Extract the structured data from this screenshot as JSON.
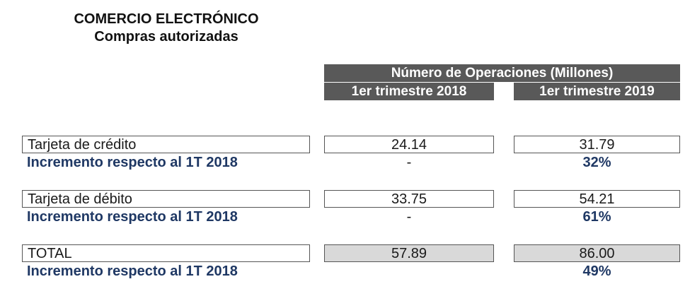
{
  "title": "COMERCIO ELECTRÓNICO",
  "subtitle": "Compras autorizadas",
  "header": {
    "main": "Número de Operaciones (Millones)",
    "col1": "1er trimestre 2018",
    "col2": "1er trimestre 2019"
  },
  "rows": [
    {
      "label": "Tarjeta de crédito",
      "v2018": "24.14",
      "v2019": "31.79",
      "increment_label": "Incremento  respecto al 1T 2018",
      "increment_2018": "-",
      "increment_2019": "32%"
    },
    {
      "label": "Tarjeta de débito",
      "v2018": "33.75",
      "v2019": "54.21",
      "increment_label": "Incremento  respecto al 1T 2018",
      "increment_2018": "-",
      "increment_2019": "61%"
    },
    {
      "label": "TOTAL",
      "v2018": "57.89",
      "v2019": "86.00",
      "increment_label": "Incremento  respecto al 1T 2018",
      "increment_2018": "",
      "increment_2019": "49%"
    }
  ],
  "colors": {
    "header_bg": "#595959",
    "increment_text": "#1f3864",
    "total_shade": "#d9d9d9"
  },
  "chart_data": {
    "type": "table",
    "title": "COMERCIO ELECTRÓNICO",
    "subtitle": "Compras autorizadas",
    "columns": [
      "1er trimestre 2018",
      "1er trimestre 2019"
    ],
    "rows": [
      {
        "name": "Tarjeta de crédito",
        "values": [
          24.14,
          31.79
        ],
        "increment": [
          null,
          "32%"
        ]
      },
      {
        "name": "Tarjeta de débito",
        "values": [
          33.75,
          54.21
        ],
        "increment": [
          null,
          "61%"
        ]
      },
      {
        "name": "TOTAL",
        "values": [
          57.89,
          86.0
        ],
        "increment": [
          null,
          "49%"
        ]
      }
    ]
  }
}
